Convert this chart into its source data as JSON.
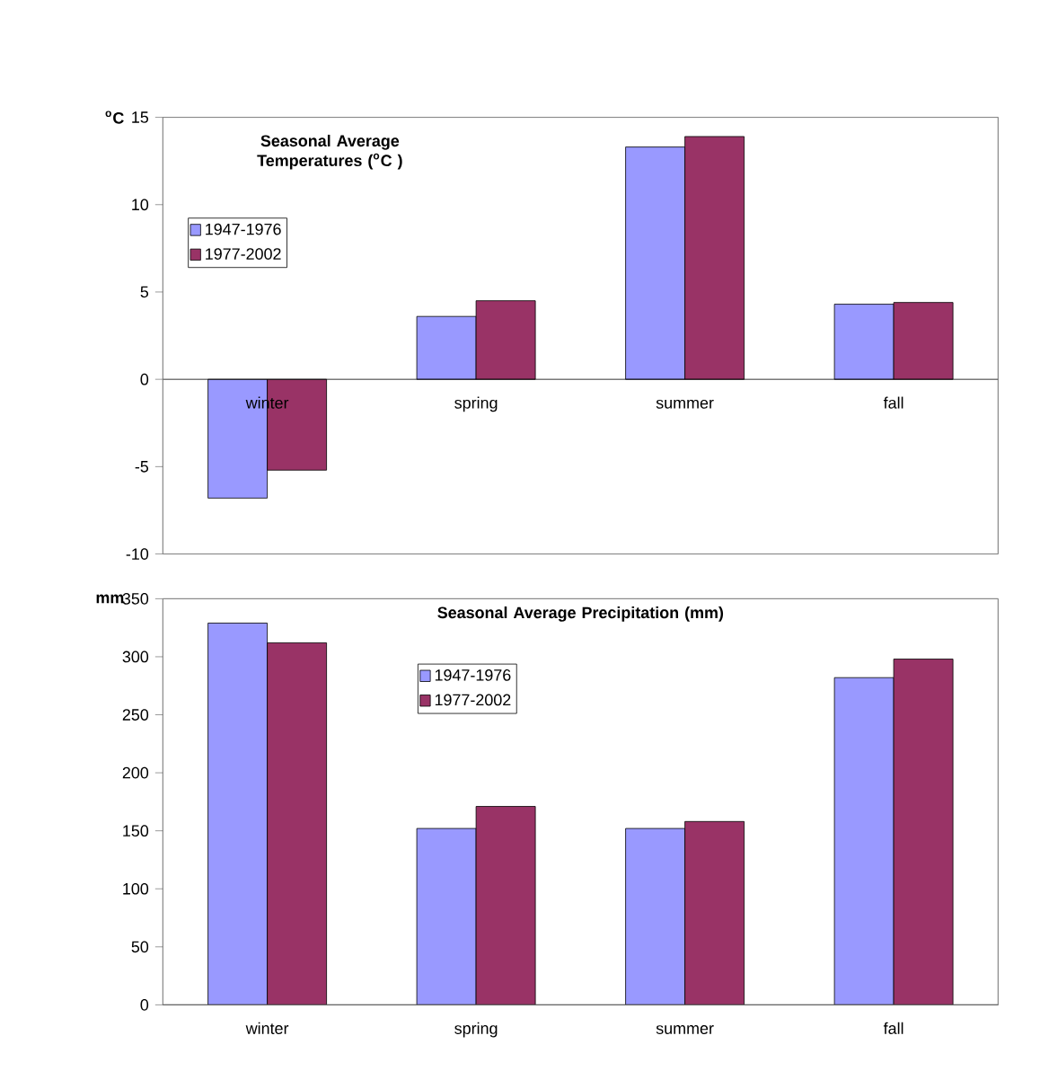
{
  "chart_data": [
    {
      "type": "bar",
      "title": "Seasonal Average Temperatures ($^{o}$C )",
      "ylabel": "$^{o}$C",
      "categories": [
        "winter",
        "spring",
        "summer",
        "fall"
      ],
      "series": [
        {
          "name": "1947-1976",
          "color": "#9999ff",
          "values": [
            -6.8,
            3.6,
            13.3,
            4.3
          ]
        },
        {
          "name": "1977-2002",
          "color": "#993366",
          "values": [
            -5.2,
            4.5,
            13.9,
            4.4
          ]
        }
      ],
      "ylim": [
        -10,
        15
      ],
      "yticks": [
        -10,
        -5,
        0,
        5,
        10,
        15
      ],
      "legend": "top left"
    },
    {
      "type": "bar",
      "title": "Seasonal Average Precipitation (mm)",
      "ylabel": "mm",
      "categories": [
        "winter",
        "spring",
        "summer",
        "fall"
      ],
      "series": [
        {
          "name": "1947-1976",
          "color": "#9999ff",
          "values": [
            329,
            152,
            152,
            282
          ]
        },
        {
          "name": "1977-2002",
          "color": "#993366",
          "values": [
            312,
            171,
            158,
            298
          ]
        }
      ],
      "ylim": [
        0,
        350
      ],
      "yticks": [
        0,
        50,
        100,
        150,
        200,
        250,
        300,
        350
      ],
      "legend": "top"
    }
  ]
}
